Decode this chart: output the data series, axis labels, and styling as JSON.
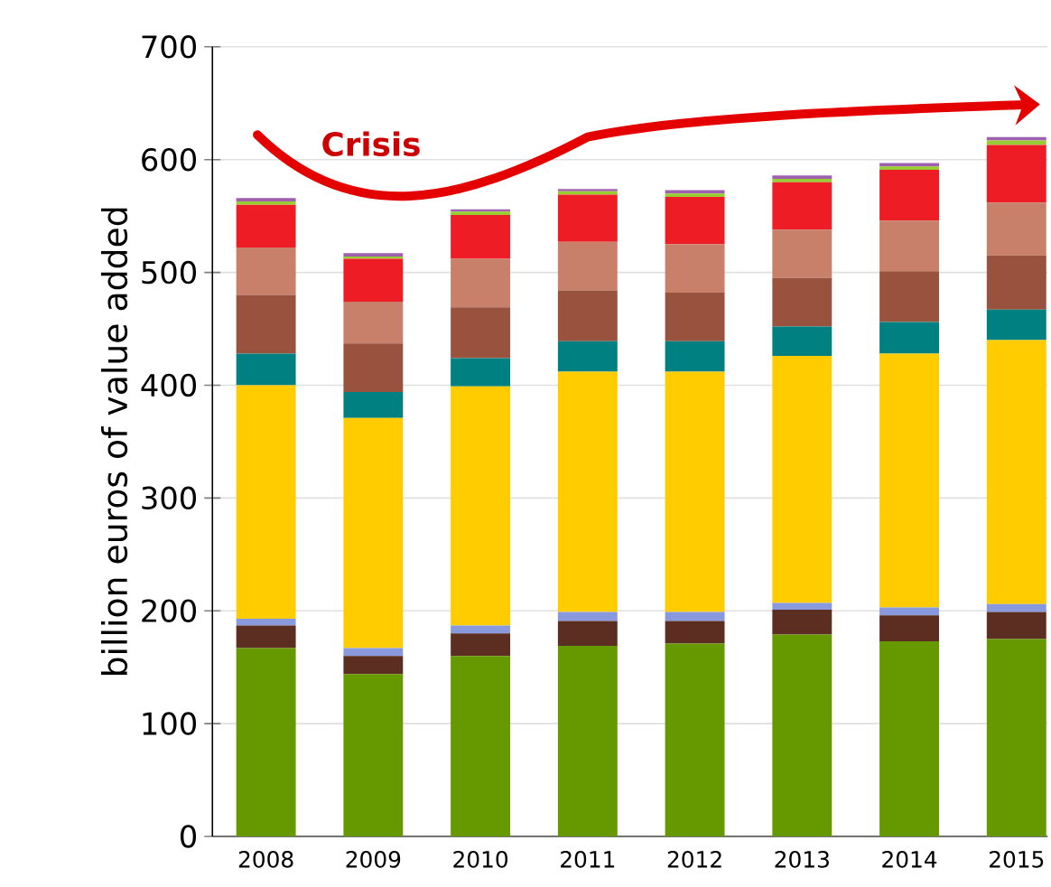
{
  "chart_data": {
    "type": "bar",
    "stacked": true,
    "ylabel": "billion euros of value added",
    "categories": [
      "2008",
      "2009",
      "2010",
      "2011",
      "2012",
      "2013",
      "2014",
      "2015"
    ],
    "series": [
      {
        "color": "#669900",
        "values": [
          167,
          144,
          160,
          169,
          171,
          179,
          173,
          175
        ]
      },
      {
        "color": "#5c2e22",
        "values": [
          20,
          16,
          20,
          22,
          20,
          22,
          23,
          24
        ]
      },
      {
        "color": "#8899dd",
        "values": [
          6,
          7,
          7,
          8,
          8,
          6,
          7,
          7
        ]
      },
      {
        "color": "#ffcc00",
        "values": [
          207,
          204,
          212,
          213,
          213,
          219,
          225,
          234
        ]
      },
      {
        "color": "#008080",
        "values": [
          28,
          23,
          25,
          27,
          27,
          26,
          28,
          27
        ]
      },
      {
        "color": "#99523d",
        "values": [
          52,
          43,
          45,
          45,
          43,
          43,
          45,
          48
        ]
      },
      {
        "color": "#c8806a",
        "values": [
          42,
          37,
          43,
          43,
          43,
          43,
          45,
          47
        ]
      },
      {
        "color": "#ee1c25",
        "values": [
          38,
          38,
          39,
          42,
          42,
          42,
          45,
          51
        ]
      },
      {
        "color": "#99cc33",
        "values": [
          3,
          2,
          3,
          3,
          3,
          3,
          3,
          4
        ]
      },
      {
        "color": "#a060b0",
        "values": [
          3,
          3,
          2,
          2,
          3,
          3,
          3,
          3
        ]
      }
    ],
    "ylim": [
      0,
      700
    ],
    "yticks": [
      0,
      100,
      200,
      300,
      400,
      500,
      600,
      700
    ],
    "grid": "y",
    "annotations": [
      "Crisis"
    ]
  }
}
